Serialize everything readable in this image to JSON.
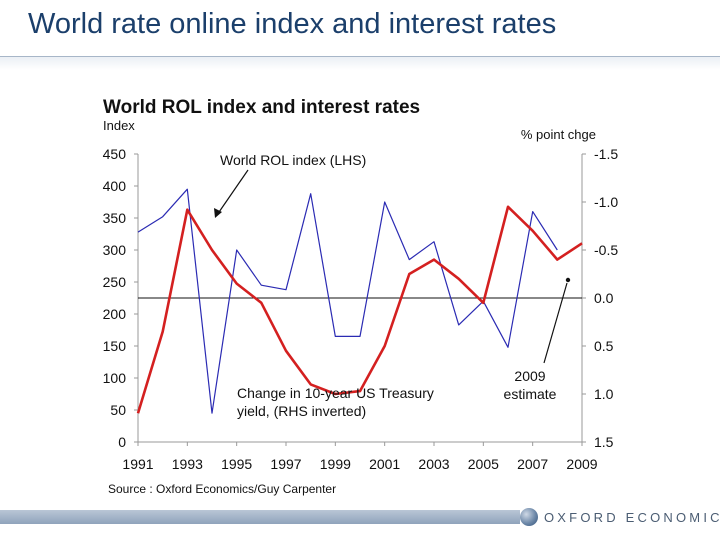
{
  "slide": {
    "title": "World rate online index and interest rates"
  },
  "logo": {
    "text": "OXFORD ECONOMICS",
    "icon": "globe-icon"
  },
  "chart_data": {
    "type": "line",
    "title": "World ROL index and interest rates",
    "ylabel_left": "Index",
    "ylabel_right": "% point chge",
    "source": "Source : Oxford Economics/Guy Carpenter",
    "x_ticks": [
      "1991",
      "1993",
      "1995",
      "1997",
      "1999",
      "2001",
      "2003",
      "2005",
      "2007",
      "2009"
    ],
    "y_left": {
      "range": [
        0,
        450
      ],
      "ticks": [
        "0",
        "50",
        "100",
        "150",
        "200",
        "250",
        "300",
        "350",
        "400",
        "450"
      ]
    },
    "y_right": {
      "range": [
        1.5,
        -1.5
      ],
      "inverted": true,
      "ticks": [
        "1.5",
        "1.0",
        "0.5",
        "0.0",
        "-0.5",
        "-1.0",
        "-1.5"
      ]
    },
    "zero_line_right": 0.0,
    "series": [
      {
        "name": "World ROL index (LHS)",
        "axis": "left",
        "color": "#2b2bb3",
        "x": [
          1991,
          1992,
          1993,
          1994,
          1995,
          1996,
          1997,
          1998,
          1999,
          2000,
          2001,
          2002,
          2003,
          2004,
          2005,
          2006,
          2007,
          2008,
          2009
        ],
        "y": [
          328,
          352,
          395,
          45,
          300,
          245,
          238,
          388,
          165,
          165,
          375,
          285,
          313,
          183,
          220,
          148,
          360,
          300,
          null
        ]
      },
      {
        "name": "Change in 10-year US Treasury yield, (RHS inverted)",
        "axis": "right",
        "color": "#d42020",
        "x": [
          1991,
          1992,
          1993,
          1994,
          1995,
          1996,
          1997,
          1998,
          1999,
          2000,
          2001,
          2002,
          2003,
          2004,
          2005,
          2006,
          2007,
          2008,
          2009
        ],
        "y": [
          1.2,
          0.35,
          -0.92,
          -0.5,
          -0.15,
          0.05,
          0.55,
          0.9,
          1.0,
          0.97,
          0.5,
          -0.25,
          -0.4,
          -0.2,
          0.05,
          -0.95,
          -0.7,
          -0.4,
          -0.57
        ]
      }
    ],
    "annotations": {
      "rol": "World ROL index (LHS)",
      "yield_line1": "Change in 10-year US Treasury",
      "yield_line2": "yield, (RHS inverted)",
      "estimate_line1": "2009",
      "estimate_line2": "estimate"
    }
  }
}
